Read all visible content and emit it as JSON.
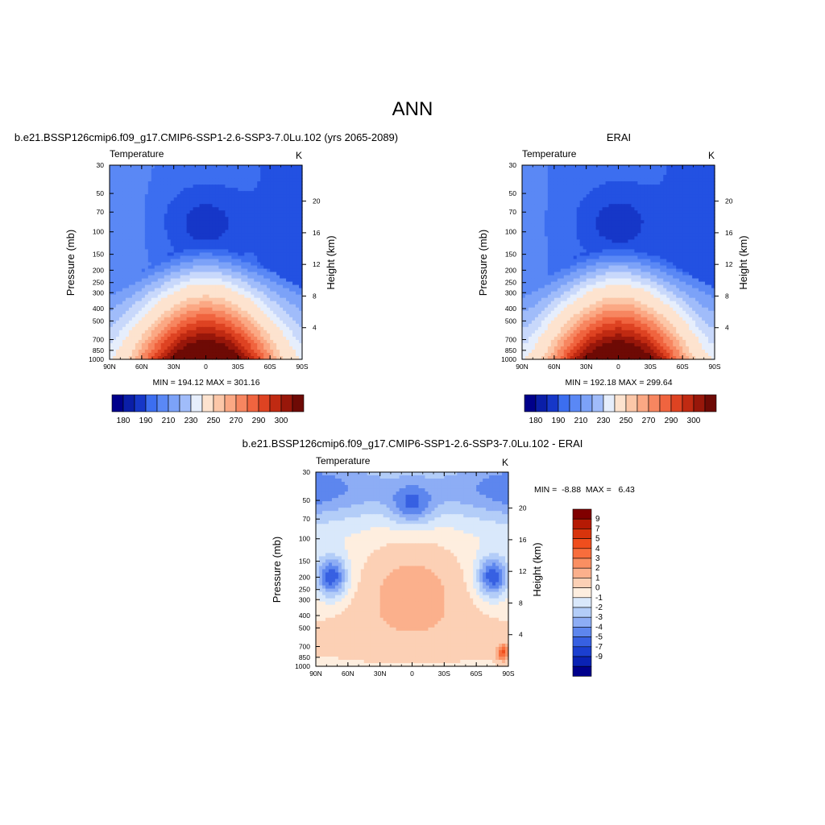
{
  "page_title": "ANN",
  "chart_data": [
    {
      "type": "heatmap",
      "id": "model",
      "heading": "b.e21.BSSP126cmip6.f09_g17.CMIP6-SSP1-2.6-SSP3-7.0Lu.102 (yrs 2065-2089)",
      "title": "Temperature",
      "units": "K",
      "xlabel": "",
      "ylabel": "Pressure (mb)",
      "y2label": "Height (km)",
      "x_ticks": [
        "90N",
        "60N",
        "30N",
        "0",
        "30S",
        "60S",
        "90S"
      ],
      "y_ticks": [
        "30",
        "50",
        "70",
        "100",
        "150",
        "200",
        "250",
        "300",
        "400",
        "500",
        "700",
        "850",
        "1000"
      ],
      "y_tick_values": [
        30,
        50,
        70,
        100,
        150,
        200,
        250,
        300,
        400,
        500,
        700,
        850,
        1000
      ],
      "y2_ticks": [
        "20",
        "16",
        "12",
        "8",
        "4"
      ],
      "y2_tick_values": [
        20,
        16,
        12,
        8,
        4
      ],
      "ylim": [
        1000,
        30
      ],
      "y_scale": "log",
      "xlim": [
        90,
        -90
      ],
      "stats": "MIN = 194.12  MAX = 301.16",
      "min": 194.12,
      "max": 301.16,
      "levels": [
        180,
        185,
        190,
        195,
        200,
        205,
        210,
        215,
        220,
        225,
        230,
        235,
        240,
        245,
        250,
        255,
        260,
        265,
        270,
        275,
        280,
        285,
        290,
        295,
        300
      ],
      "colorbar_labels": [
        "180",
        "190",
        "210",
        "230",
        "250",
        "270",
        "290",
        "300"
      ],
      "colors": [
        "#00008b",
        "#0a1ea8",
        "#1637c8",
        "#2351e2",
        "#3c6ef0",
        "#5a88f5",
        "#7ca2f8",
        "#a0bcfa",
        "#c8d8fb",
        "#e6eefc",
        "#fde3cf",
        "#fcc7a8",
        "#fba884",
        "#f78660",
        "#f0643f",
        "#de4322",
        "#c02a12",
        "#98170a",
        "#6e0a05"
      ],
      "cmap_cuts": [
        180,
        190,
        200,
        210,
        215,
        220,
        225,
        230,
        235,
        240,
        250,
        255,
        260,
        265,
        270,
        275,
        280,
        285,
        290,
        300
      ],
      "legend": "colorbar-bottom",
      "grid": false
    },
    {
      "type": "heatmap",
      "id": "obs",
      "heading": "ERAI",
      "title": "Temperature",
      "units": "K",
      "xlabel": "",
      "ylabel": "Pressure (mb)",
      "y2label": "Height (km)",
      "x_ticks": [
        "90N",
        "60N",
        "30N",
        "0",
        "30S",
        "60S",
        "90S"
      ],
      "y_ticks": [
        "30",
        "50",
        "70",
        "100",
        "150",
        "200",
        "250",
        "300",
        "400",
        "500",
        "700",
        "850",
        "1000"
      ],
      "y_tick_values": [
        30,
        50,
        70,
        100,
        150,
        200,
        250,
        300,
        400,
        500,
        700,
        850,
        1000
      ],
      "y2_ticks": [
        "20",
        "16",
        "12",
        "8",
        "4"
      ],
      "y2_tick_values": [
        20,
        16,
        12,
        8,
        4
      ],
      "ylim": [
        1000,
        30
      ],
      "y_scale": "log",
      "xlim": [
        90,
        -90
      ],
      "stats": "MIN = 192.18  MAX = 299.64",
      "min": 192.18,
      "max": 299.64,
      "colorbar_labels": [
        "180",
        "190",
        "210",
        "230",
        "250",
        "270",
        "290",
        "300"
      ],
      "legend": "colorbar-bottom",
      "grid": false
    },
    {
      "type": "heatmap",
      "id": "diff",
      "heading": "b.e21.BSSP126cmip6.f09_g17.CMIP6-SSP1-2.6-SSP3-7.0Lu.102 - ERAI",
      "title": "Temperature",
      "units": "K",
      "xlabel": "",
      "ylabel": "Pressure (mb)",
      "y2label": "Height (km)",
      "x_ticks": [
        "90N",
        "60N",
        "30N",
        "0",
        "30S",
        "60S",
        "90S"
      ],
      "y_ticks": [
        "30",
        "50",
        "70",
        "100",
        "150",
        "200",
        "250",
        "300",
        "400",
        "500",
        "700",
        "850",
        "1000"
      ],
      "y_tick_values": [
        30,
        50,
        70,
        100,
        150,
        200,
        250,
        300,
        400,
        500,
        700,
        850,
        1000
      ],
      "y2_ticks": [
        "20",
        "16",
        "12",
        "8",
        "4"
      ],
      "y2_tick_values": [
        20,
        16,
        12,
        8,
        4
      ],
      "ylim": [
        1000,
        30
      ],
      "y_scale": "log",
      "xlim": [
        90,
        -90
      ],
      "stats": "MIN =  -8.88  MAX =   6.43",
      "min": -8.88,
      "max": 6.43,
      "levels": [
        -9,
        -7,
        -5,
        -4,
        -3,
        -2,
        -1,
        0,
        1,
        2,
        3,
        4,
        5,
        7,
        9
      ],
      "colorbar_labels": [
        "9",
        "7",
        "5",
        "4",
        "3",
        "2",
        "1",
        "0",
        "-1",
        "-2",
        "-3",
        "-4",
        "-5",
        "-7",
        "-9"
      ],
      "colors": [
        "#800000",
        "#b51a04",
        "#d8340c",
        "#f04e1d",
        "#f86d3c",
        "#fa8f62",
        "#fbb08c",
        "#fcd0b5",
        "#feeedf",
        "#d9e8fb",
        "#b3cdf8",
        "#8dadf5",
        "#5d86ee",
        "#3760e2",
        "#1b3fd0",
        "#0a22b4",
        "#00008b"
      ],
      "legend": "colorbar-right",
      "grid": false
    }
  ]
}
